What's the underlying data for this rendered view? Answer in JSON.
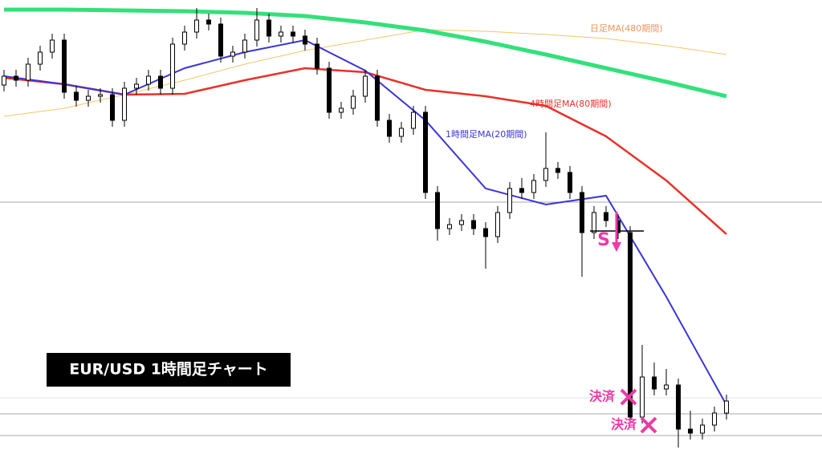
{
  "chart_data": {
    "type": "candlestick",
    "title": "EUR/USD  1時間足チャート",
    "xlim": [
      -0.333,
      67.933
    ],
    "ylim": [
      0,
      576
    ],
    "candles": {
      "open": [
        470,
        481,
        476,
        496,
        511,
        526,
        461,
        451,
        456,
        458,
        426,
        466,
        471,
        481,
        466,
        521,
        536,
        551,
        546,
        506,
        511,
        526,
        551,
        531,
        536,
        531,
        521,
        491,
        436,
        441,
        456,
        481,
        426,
        406,
        416,
        436,
        336,
        291,
        296,
        301,
        291,
        281,
        311,
        341,
        336,
        351,
        366,
        361,
        336,
        286,
        311,
        301,
        286,
        56,
        106,
        91,
        96,
        41,
        36,
        46,
        61
      ],
      "high": [
        489,
        489,
        504,
        519,
        534,
        534,
        469,
        464,
        466,
        466,
        474,
        479,
        489,
        489,
        529,
        544,
        566,
        559,
        554,
        519,
        534,
        566,
        559,
        544,
        544,
        539,
        529,
        499,
        449,
        464,
        489,
        489,
        434,
        424,
        444,
        444,
        344,
        304,
        309,
        309,
        299,
        319,
        349,
        354,
        359,
        411,
        374,
        369,
        344,
        319,
        319,
        309,
        294,
        146,
        124,
        116,
        104,
        64,
        54,
        69,
        84
      ],
      "low": [
        462,
        468,
        468,
        488,
        503,
        453,
        443,
        443,
        448,
        418,
        418,
        458,
        463,
        458,
        458,
        513,
        528,
        538,
        498,
        498,
        503,
        518,
        523,
        523,
        523,
        513,
        483,
        428,
        428,
        433,
        448,
        418,
        398,
        398,
        408,
        328,
        276,
        283,
        288,
        283,
        241,
        273,
        303,
        328,
        328,
        343,
        353,
        328,
        231,
        278,
        293,
        278,
        48,
        48,
        83,
        83,
        18,
        28,
        28,
        38,
        53
      ],
      "close": [
        481,
        476,
        496,
        511,
        526,
        461,
        451,
        456,
        458,
        426,
        466,
        471,
        481,
        466,
        521,
        536,
        551,
        546,
        506,
        511,
        526,
        551,
        531,
        536,
        531,
        521,
        491,
        436,
        441,
        456,
        481,
        426,
        406,
        416,
        436,
        336,
        291,
        296,
        301,
        291,
        281,
        311,
        341,
        336,
        351,
        366,
        361,
        336,
        286,
        311,
        301,
        286,
        56,
        106,
        91,
        96,
        41,
        36,
        46,
        61,
        76
      ],
      "up_color": "#ffffff",
      "down_color": "#000000"
    },
    "series": [
      {
        "name": "日足MA(480期間)",
        "color": "#f5c56a",
        "width": 1,
        "x": [
          0,
          5,
          10,
          15,
          20,
          25,
          30,
          35,
          40,
          45,
          50,
          55,
          60
        ],
        "values": [
          431,
          441,
          458,
          476,
          496,
          513,
          526,
          539,
          537,
          533,
          528,
          519,
          508
        ]
      },
      {
        "name": "4時間足MA(80期間)",
        "color": "#e8312a",
        "width": 2.5,
        "x": [
          0,
          5,
          10,
          15,
          20,
          25,
          30,
          35,
          40,
          45,
          50,
          55,
          60
        ],
        "values": [
          479,
          471,
          458,
          459,
          476,
          491,
          486,
          464,
          456,
          444,
          406,
          351,
          284
        ]
      },
      {
        "name": "1時間足MA(20期間)",
        "color": "#3a35d8",
        "width": 2,
        "x": [
          0,
          5,
          10,
          15,
          20,
          25,
          30,
          35,
          40,
          45,
          50,
          55,
          60
        ],
        "values": [
          481,
          471,
          458,
          491,
          511,
          526,
          488,
          426,
          341,
          321,
          332,
          206,
          71
        ]
      },
      {
        "name": null,
        "color": "#33e07a",
        "width": 5,
        "x": [
          0,
          5,
          10,
          15,
          20,
          25,
          30,
          35,
          40,
          45,
          50,
          55,
          60
        ],
        "values": [
          564,
          564,
          563,
          562,
          560,
          556,
          548,
          538,
          524,
          508,
          491,
          474,
          456
        ]
      }
    ],
    "hlines": [
      324,
      60,
      33,
      80
    ],
    "entry_level": 288,
    "annotations": {
      "entry": "S",
      "exit1": "決済",
      "exit2": "決済"
    }
  }
}
